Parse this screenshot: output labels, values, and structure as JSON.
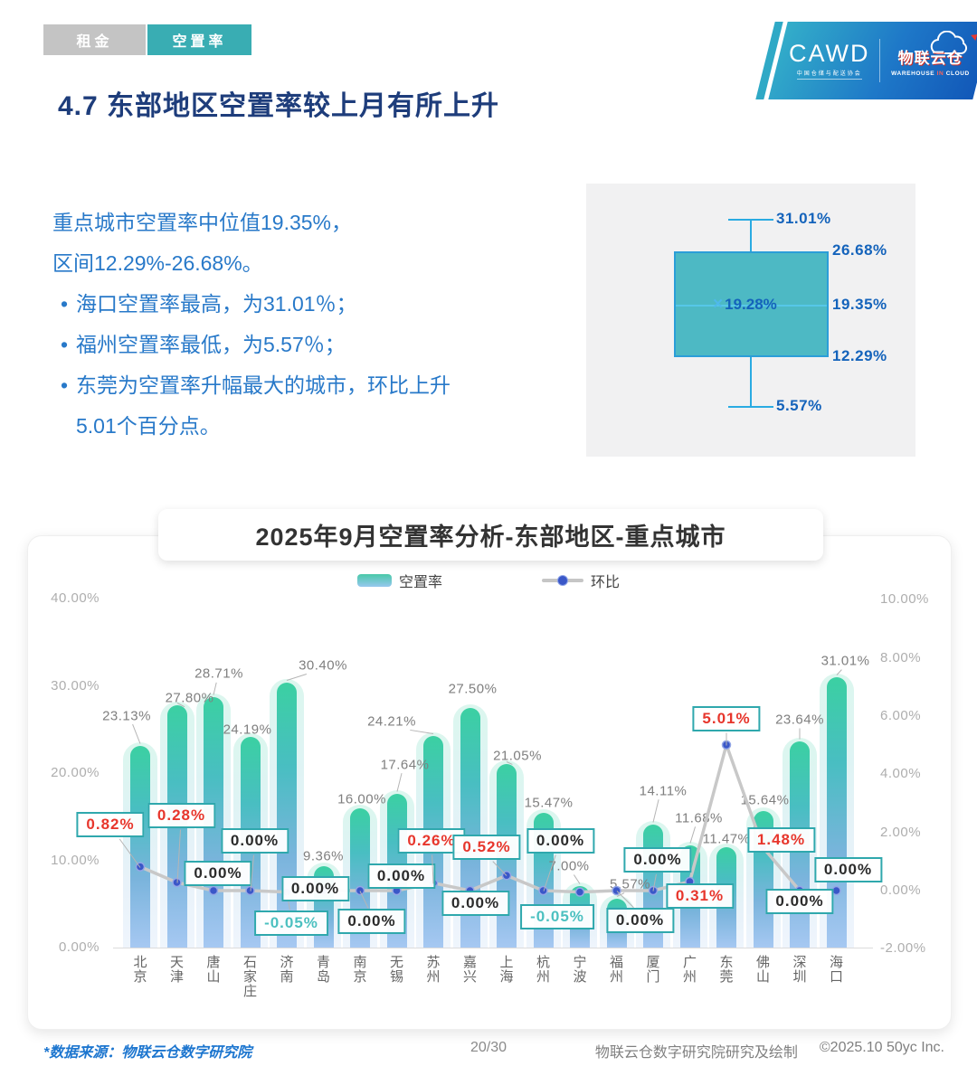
{
  "tabs": [
    {
      "label": "租金",
      "active": false
    },
    {
      "label": "空置率",
      "active": true
    }
  ],
  "logo": {
    "cawd": "CAWD",
    "cawd_sub": "中国仓储与配送协会",
    "brand": "物联云仓",
    "brand_sub_1": "WAREHOUSE",
    "brand_sub_2": "IN",
    "brand_sub_3": "CLOUD"
  },
  "page_title": "4.7 东部地区空置率较上月有所上升",
  "summary": {
    "line1": "重点城市空置率中位值19.35%，",
    "line2": "区间12.29%-26.68%。",
    "bullet1": "海口空置率最高，为31.01％；",
    "bullet2": "福州空置率最低，为5.57％；",
    "bullet3a": "东莞为空置率升幅最大的城市，环比上升",
    "bullet3b": "5.01个百分点。"
  },
  "colors": {
    "accent_teal": "#39adb3",
    "title_navy": "#1e3d7b",
    "body_blue": "#2879c9",
    "box_fill": "#4db9c4",
    "box_border": "#2b9ed8",
    "whisker_blue": "#2aabe2",
    "value_blue": "#1463bb",
    "mom_positive_red": "#e7362c",
    "mom_negative_teal": "#4cc0c0",
    "line_gray": "#c8c8c8",
    "marker_blue": "#3a57c8"
  },
  "chart_data": [
    {
      "type": "boxplot",
      "min": 5.57,
      "q1": 12.29,
      "median": 19.35,
      "q3": 26.68,
      "max": 31.01,
      "mean": 19.28,
      "labels": {
        "max": "31.01%",
        "q3": "26.68%",
        "median": "19.35%",
        "q1": "12.29%",
        "min": "5.57%",
        "mean": "19.28%"
      },
      "mean_marker": "×"
    },
    {
      "type": "combo",
      "title": "2025年9月空置率分析-东部地区-重点城市",
      "categories": [
        "北京",
        "天津",
        "唐山",
        "石家庄",
        "济南",
        "青岛",
        "南京",
        "无锡",
        "苏州",
        "嘉兴",
        "上海",
        "杭州",
        "宁波",
        "福州",
        "厦门",
        "广州",
        "东莞",
        "佛山",
        "深圳",
        "海口"
      ],
      "series": [
        {
          "name": "空置率",
          "type": "bar",
          "values": [
            23.13,
            27.8,
            28.71,
            24.19,
            30.4,
            9.36,
            16.0,
            17.64,
            24.21,
            27.5,
            21.05,
            15.47,
            7.0,
            5.57,
            14.11,
            11.68,
            11.47,
            15.64,
            23.64,
            31.01
          ]
        },
        {
          "name": "环比",
          "type": "line",
          "values": [
            0.82,
            0.28,
            0.0,
            0.0,
            -0.05,
            0.0,
            0.0,
            0.0,
            0.26,
            0.0,
            0.52,
            0.0,
            -0.05,
            0.0,
            0.0,
            0.31,
            5.01,
            1.48,
            0.0,
            0.0
          ]
        }
      ],
      "left_axis": {
        "range": [
          0,
          40
        ],
        "ticks": [
          40,
          30,
          20,
          10,
          0
        ]
      },
      "right_axis": {
        "range": [
          -2,
          10
        ],
        "ticks": [
          10,
          8,
          6,
          4,
          2,
          0,
          -2
        ]
      },
      "legend": [
        "空置率",
        "环比"
      ],
      "grid": false,
      "legend_position": "top",
      "layout": {
        "bar_label_dx": [
          -15,
          14,
          6,
          -3,
          40,
          0,
          2,
          9,
          -46,
          3,
          12,
          6,
          -12,
          15,
          11,
          10,
          0,
          2,
          0,
          10
        ],
        "bar_label_dy": [
          -33,
          -8,
          -26,
          -8,
          -19,
          -11,
          -10,
          -32,
          -16,
          -21,
          -9,
          -11,
          -22,
          -16,
          -37,
          -30,
          -9,
          -12,
          -24,
          -18
        ],
        "mom_dx": [
          -33,
          5,
          5,
          5,
          5,
          -9,
          13,
          5,
          -2,
          6,
          -22,
          19,
          -25,
          26,
          5,
          11,
          0,
          20,
          0,
          13
        ],
        "mom_dy": [
          -47,
          -74,
          -19,
          -55,
          34,
          -2,
          34,
          -16,
          -47,
          14,
          -31,
          -55,
          27,
          33,
          -34,
          16,
          -29,
          -8,
          12,
          -23
        ]
      }
    }
  ],
  "footer": {
    "source": "*数据来源：物联云仓数字研究院",
    "page": "20/30",
    "credit": "物联云仓数字研究院研究及绘制",
    "copyright": "©2025.10 50yc Inc."
  }
}
